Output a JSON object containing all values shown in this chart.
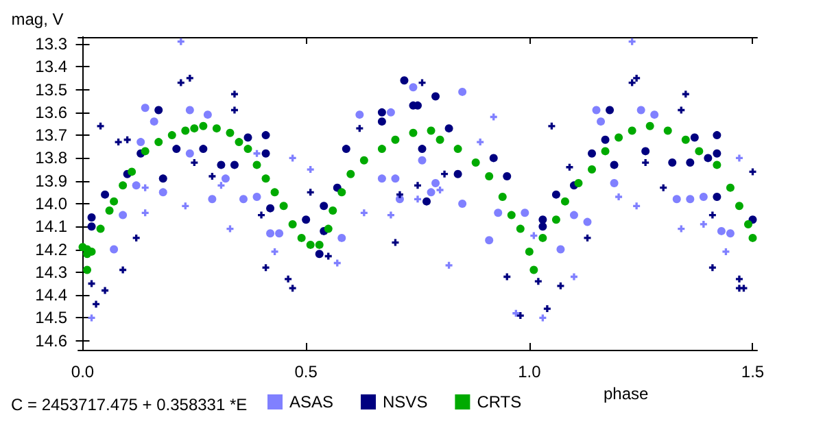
{
  "chart_data": {
    "type": "scatter",
    "xlabel": "phase",
    "ylabel": "mag, V",
    "annotations": [
      "C = 2453717.475 + 0.358331 *E"
    ],
    "xlim": [
      -0.01,
      1.51
    ],
    "xticks": [
      {
        "value": 0,
        "label": "0.0"
      },
      0.5,
      {
        "value": 1,
        "label": "1.0"
      },
      1.5
    ],
    "ylim": [
      14.64,
      13.27
    ],
    "yticks": [
      13.3,
      13.4,
      13.5,
      13.6,
      13.7,
      13.8,
      13.9,
      {
        "value": 14,
        "label": "14.0"
      },
      14.1,
      14.2,
      14.3,
      14.4,
      14.5,
      14.6
    ],
    "grid": false,
    "legend": "bottom",
    "series": [
      {
        "name": "ASAS",
        "color": "#8080ff",
        "marker": "circle",
        "x": [
          0.14,
          0.16,
          0.24,
          0.28,
          0.24,
          0.32,
          0.29,
          0.18,
          0.12,
          0.09,
          0.07,
          0.13,
          0.36,
          0.39,
          0.42,
          0.44,
          0.58,
          0.62,
          0.69,
          0.74,
          0.67,
          0.7,
          0.76,
          0.78,
          0.71,
          0.85,
          0.79,
          0.85,
          0.91,
          0.93,
          0.99,
          1.07,
          1.1,
          1.13,
          1.19,
          1.15,
          1.25,
          1.28,
          1.33,
          1.36,
          1.39,
          1.45,
          1.43,
          1.16
        ],
        "values": [
          13.58,
          13.64,
          13.59,
          13.61,
          13.78,
          13.89,
          13.98,
          13.95,
          13.92,
          14.05,
          14.2,
          13.73,
          13.98,
          13.97,
          14.13,
          14.13,
          14.15,
          13.61,
          13.6,
          13.49,
          13.89,
          13.89,
          13.81,
          13.95,
          13.98,
          13.51,
          13.91,
          14.0,
          14.16,
          14.04,
          14.04,
          14.2,
          14.05,
          14.08,
          13.91,
          13.59,
          13.59,
          13.61,
          13.98,
          13.98,
          13.97,
          14.13,
          14.12,
          13.64
        ]
      },
      {
        "color": "#8080ff",
        "marker": "cross",
        "x": [
          0.22,
          0.02,
          0.23,
          0.33,
          0.43,
          0.14,
          0.14,
          0.31,
          0.39,
          0.47,
          0.51,
          0.57,
          0.63,
          0.69,
          0.75,
          1.23,
          0.82,
          0.97,
          1.03,
          1.1,
          1.24,
          1.34,
          1.44,
          1.47,
          0.92,
          0.8,
          0.89,
          1.01,
          1.2,
          1.39
        ],
        "values": [
          13.29,
          14.5,
          14.01,
          14.11,
          14.21,
          14.04,
          13.93,
          13.92,
          13.78,
          13.8,
          13.85,
          14.26,
          14.04,
          14.05,
          13.98,
          13.29,
          14.27,
          14.48,
          14.5,
          14.32,
          14.01,
          14.11,
          14.21,
          13.8,
          13.62,
          13.94,
          13.73,
          14.14,
          13.97,
          14.09
        ]
      },
      {
        "name": "NSVS",
        "color": "#000080",
        "marker": "circle",
        "x": [
          0.02,
          0.02,
          0.05,
          0.1,
          0.13,
          0.18,
          0.17,
          0.21,
          0.27,
          0.31,
          0.37,
          0.41,
          0.41,
          0.34,
          0.42,
          0.5,
          0.54,
          0.53,
          0.54,
          0.57,
          0.59,
          0.67,
          0.67,
          0.72,
          0.75,
          0.76,
          0.77,
          0.74,
          0.79,
          0.82,
          0.84,
          0.92,
          0.95,
          0.98,
          1.03,
          1.03,
          1.06,
          1.1,
          1.14,
          1.17,
          1.19,
          1.18,
          1.26,
          1.32,
          1.36,
          1.37,
          1.4,
          1.42,
          1.42,
          1.42,
          1.5
        ],
        "values": [
          14.06,
          14.1,
          13.96,
          13.87,
          13.78,
          13.89,
          13.59,
          13.76,
          13.76,
          13.83,
          13.71,
          13.7,
          13.78,
          13.83,
          14.02,
          14.07,
          14.12,
          14.22,
          14.01,
          13.93,
          13.76,
          13.64,
          13.6,
          13.46,
          13.57,
          13.76,
          13.99,
          13.57,
          13.53,
          13.67,
          13.87,
          13.8,
          13.88,
          null,
          14.07,
          14.1,
          13.96,
          13.92,
          13.78,
          13.72,
          13.83,
          13.59,
          13.77,
          13.82,
          13.82,
          13.71,
          13.8,
          13.7,
          13.78,
          13.97,
          14.07
        ]
      },
      {
        "color": "#000080",
        "marker": "cross",
        "x": [
          0.04,
          0.02,
          0.03,
          0.05,
          0.09,
          0.08,
          0.1,
          0.12,
          0.22,
          0.24,
          0.25,
          0.29,
          0.34,
          0.34,
          0.4,
          0.41,
          0.46,
          0.47,
          0.51,
          0.55,
          0.62,
          0.7,
          0.71,
          0.75,
          0.76,
          0.81,
          1.05,
          0.95,
          0.98,
          1.02,
          1.04,
          1.07,
          1.09,
          1.13,
          1.23,
          1.24,
          1.26,
          1.3,
          1.35,
          1.34,
          1.41,
          1.47,
          1.47,
          1.48,
          1.5,
          1.41
        ],
        "values": [
          13.66,
          14.35,
          14.44,
          14.38,
          14.29,
          13.73,
          13.72,
          14.15,
          13.47,
          13.45,
          13.82,
          13.88,
          13.52,
          13.59,
          14.05,
          14.28,
          14.33,
          14.37,
          13.95,
          14.23,
          13.67,
          14.17,
          13.96,
          13.92,
          13.47,
          13.87,
          13.66,
          14.32,
          14.49,
          14.34,
          14.46,
          14.36,
          13.84,
          14.15,
          13.47,
          13.45,
          13.82,
          13.93,
          13.52,
          13.59,
          14.28,
          14.33,
          14.37,
          14.37,
          13.86,
          14.05
        ]
      },
      {
        "name": "CRTS",
        "color": "#00aa00",
        "marker": "circle",
        "x": [
          0.0,
          0.01,
          0.01,
          0.02,
          0.01,
          0.04,
          0.06,
          0.07,
          0.09,
          0.11,
          0.14,
          0.17,
          0.2,
          0.23,
          0.25,
          0.27,
          0.3,
          0.33,
          0.35,
          0.37,
          0.39,
          0.41,
          0.43,
          0.45,
          0.47,
          0.49,
          0.51,
          0.53,
          0.55,
          0.56,
          0.58,
          0.6,
          0.63,
          0.67,
          0.7,
          0.74,
          0.78,
          0.8,
          0.84,
          0.88,
          0.91,
          0.94,
          0.96,
          0.98,
          1.0,
          1.01,
          1.03,
          1.06,
          1.08,
          1.11,
          1.14,
          1.17,
          1.2,
          1.23,
          1.27,
          1.31,
          1.35,
          1.38,
          1.42,
          1.45,
          1.47,
          1.49,
          1.5
        ],
        "values": [
          14.19,
          14.22,
          14.2,
          14.21,
          14.29,
          14.11,
          14.03,
          13.99,
          13.92,
          13.86,
          13.77,
          13.73,
          13.7,
          13.68,
          13.67,
          13.66,
          13.67,
          13.69,
          13.73,
          13.76,
          13.83,
          13.89,
          13.95,
          14.01,
          14.09,
          14.15,
          14.18,
          14.18,
          14.11,
          14.03,
          13.95,
          13.87,
          13.81,
          13.76,
          13.72,
          13.69,
          13.68,
          13.72,
          13.76,
          13.82,
          13.88,
          13.97,
          14.05,
          14.11,
          14.21,
          14.29,
          14.15,
          14.07,
          13.99,
          13.91,
          13.85,
          13.77,
          13.71,
          13.68,
          13.66,
          13.68,
          13.72,
          13.77,
          13.83,
          13.93,
          14.01,
          14.09,
          14.15
        ]
      }
    ]
  }
}
